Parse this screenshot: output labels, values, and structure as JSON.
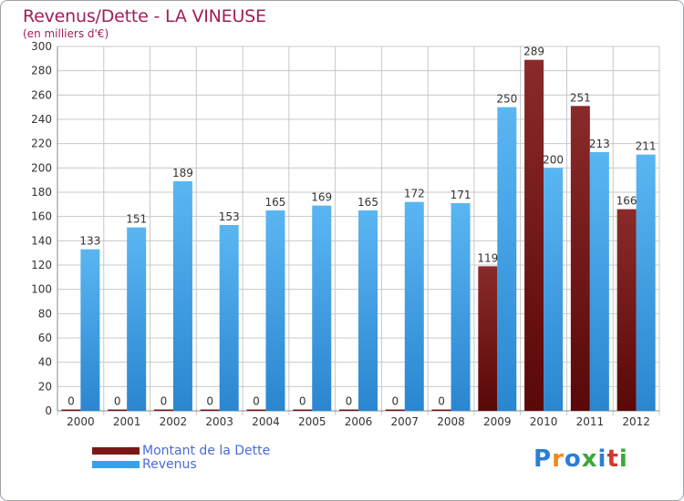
{
  "title": "Revenus/Dette - LA VINEUSE",
  "subtitle": "(en milliers d'€)",
  "logo": {
    "text": "Proxiti",
    "colors": [
      "#2a7fd6",
      "#f08a1c",
      "#2a7fd6",
      "#3aa83a",
      "#2a7fd6",
      "#d03a2a",
      "#3aa83a"
    ]
  },
  "colors": {
    "dette": "#7a1818",
    "revenus": "#3aa0e8",
    "title": "#a01e5a",
    "legend_text": "#4a6ad8"
  },
  "chart_data": {
    "type": "bar",
    "categories": [
      "2000",
      "2001",
      "2002",
      "2003",
      "2004",
      "2005",
      "2006",
      "2007",
      "2008",
      "2009",
      "2010",
      "2011",
      "2012"
    ],
    "series": [
      {
        "name": "Montant de la Dette",
        "values": [
          0,
          0,
          0,
          0,
          0,
          0,
          0,
          0,
          0,
          119,
          289,
          251,
          166
        ]
      },
      {
        "name": "Revenus",
        "values": [
          133,
          151,
          189,
          153,
          165,
          169,
          165,
          172,
          171,
          250,
          200,
          213,
          211
        ]
      }
    ],
    "ylim": [
      0,
      300
    ],
    "yticks": [
      0,
      20,
      40,
      60,
      80,
      100,
      120,
      140,
      160,
      180,
      200,
      220,
      240,
      260,
      280,
      300
    ],
    "grid": true,
    "legend_position": "bottom-left"
  }
}
